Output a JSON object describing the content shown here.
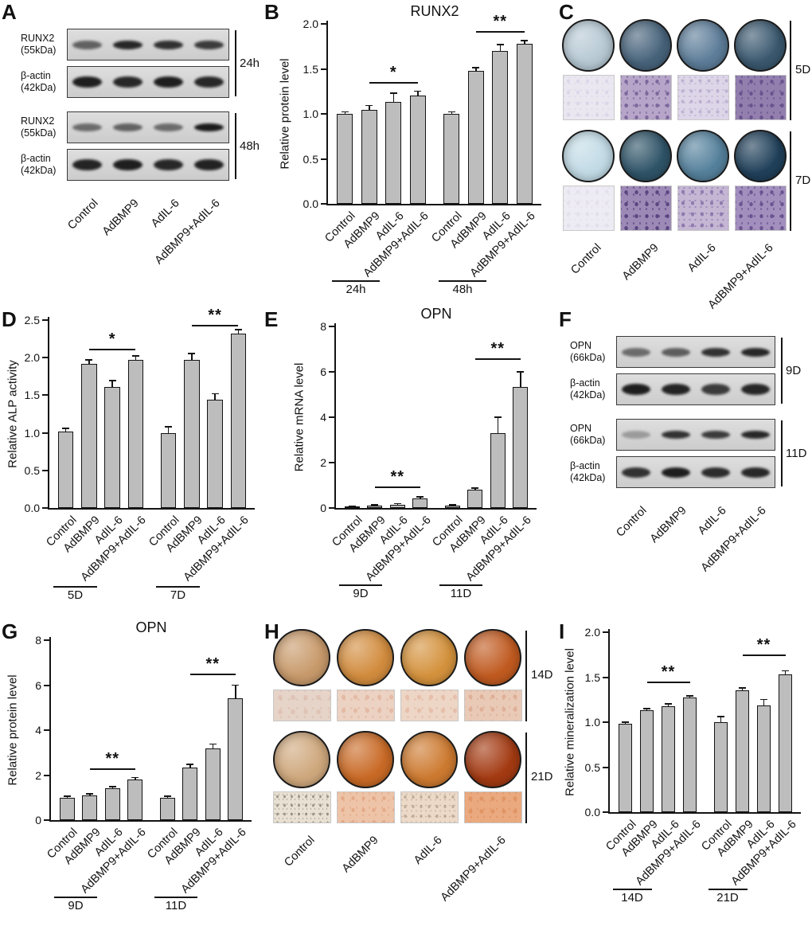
{
  "figure": {
    "panel_letters": [
      "A",
      "B",
      "C",
      "D",
      "E",
      "F",
      "G",
      "H",
      "I"
    ],
    "lane_labels": [
      "Control",
      "AdBMP9",
      "AdIL-6",
      "AdBMP9+AdIL-6"
    ]
  },
  "charts": {
    "B": {
      "type": "bar",
      "title": "RUNX2",
      "ylabel": "Relative protein level",
      "ylim": [
        0,
        2.0
      ],
      "yticks": [
        "0.0",
        "0.5",
        "1.0",
        "1.5",
        "2.0"
      ],
      "categories": [
        "Control",
        "AdBMP9",
        "AdIL-6",
        "AdBMP9+AdIL-6",
        "Control",
        "AdBMP9",
        "AdIL-6",
        "AdBMP9+AdIL-6"
      ],
      "values": [
        1.0,
        1.04,
        1.13,
        1.2,
        1.0,
        1.48,
        1.7,
        1.78
      ],
      "errors": [
        0.02,
        0.05,
        0.1,
        0.05,
        0.02,
        0.03,
        0.07,
        0.03
      ],
      "groups": [
        {
          "label": "24h",
          "from": 0,
          "to": 3
        },
        {
          "label": "48h",
          "from": 4,
          "to": 7
        }
      ],
      "sig": [
        {
          "label": "*",
          "from": 1,
          "to": 3,
          "y": 1.35
        },
        {
          "label": "**",
          "from": 5,
          "to": 7,
          "y": 1.92
        }
      ]
    },
    "D": {
      "type": "bar",
      "title": "",
      "ylabel": "Relative ALP activity",
      "ylim": [
        0,
        2.5
      ],
      "yticks": [
        "0.0",
        "0.5",
        "1.0",
        "1.5",
        "2.0",
        "2.5"
      ],
      "categories": [
        "Control",
        "AdBMP9",
        "AdIL-6",
        "AdBMP9+AdIL-6",
        "Control",
        "AdBMP9",
        "AdIL-6",
        "AdBMP9+AdIL-6"
      ],
      "values": [
        1.02,
        1.92,
        1.61,
        1.97,
        1.0,
        1.97,
        1.44,
        2.32
      ],
      "errors": [
        0.04,
        0.05,
        0.08,
        0.05,
        0.08,
        0.08,
        0.08,
        0.05
      ],
      "groups": [
        {
          "label": "5D",
          "from": 0,
          "to": 3
        },
        {
          "label": "7D",
          "from": 4,
          "to": 7
        }
      ],
      "sig": [
        {
          "label": "*",
          "from": 1,
          "to": 3,
          "y": 2.12
        },
        {
          "label": "**",
          "from": 5,
          "to": 7,
          "y": 2.44
        }
      ]
    },
    "E": {
      "type": "bar",
      "title": "OPN",
      "ylabel": "Relative mRNA level",
      "ylim": [
        0,
        8
      ],
      "yticks": [
        "0",
        "2",
        "4",
        "6",
        "8"
      ],
      "categories": [
        "Control",
        "AdBMP9",
        "AdIL-6",
        "AdBMP9+AdIL-6",
        "Control",
        "AdBMP9",
        "AdIL-6",
        "AdBMP9+AdIL-6"
      ],
      "values": [
        0.06,
        0.1,
        0.14,
        0.42,
        0.1,
        0.82,
        3.3,
        5.35
      ],
      "errors": [
        0.02,
        0.03,
        0.04,
        0.06,
        0.03,
        0.06,
        0.7,
        0.65
      ],
      "groups": [
        {
          "label": "9D",
          "from": 0,
          "to": 3
        },
        {
          "label": "11D",
          "from": 4,
          "to": 7
        }
      ],
      "sig": [
        {
          "label": "**",
          "from": 1,
          "to": 3,
          "y": 0.95
        },
        {
          "label": "**",
          "from": 5,
          "to": 7,
          "y": 6.6
        }
      ]
    },
    "G": {
      "type": "bar",
      "title": "OPN",
      "ylabel": "Relative protein level",
      "ylim": [
        0,
        8
      ],
      "yticks": [
        "0",
        "2",
        "4",
        "6",
        "8"
      ],
      "categories": [
        "Control",
        "AdBMP9",
        "AdIL-6",
        "AdBMP9+AdIL-6",
        "Control",
        "AdBMP9",
        "AdIL-6",
        "AdBMP9+AdIL-6"
      ],
      "values": [
        1.0,
        1.1,
        1.42,
        1.8,
        1.0,
        2.35,
        3.2,
        5.4
      ],
      "errors": [
        0.05,
        0.06,
        0.06,
        0.08,
        0.05,
        0.12,
        0.18,
        0.6
      ],
      "groups": [
        {
          "label": "9D",
          "from": 0,
          "to": 3
        },
        {
          "label": "11D",
          "from": 4,
          "to": 7
        }
      ],
      "sig": [
        {
          "label": "**",
          "from": 1,
          "to": 3,
          "y": 2.3
        },
        {
          "label": "**",
          "from": 5,
          "to": 7,
          "y": 6.5
        }
      ]
    },
    "I": {
      "type": "bar",
      "title": "",
      "ylabel": "Relative mineralization level",
      "ylim": [
        0,
        2.0
      ],
      "yticks": [
        "0.0",
        "0.5",
        "1.0",
        "1.5",
        "2.0"
      ],
      "categories": [
        "Control",
        "AdBMP9",
        "AdIL-6",
        "AdBMP9+AdIL-6",
        "Control",
        "AdBMP9",
        "AdIL-6",
        "AdBMP9+AdIL-6"
      ],
      "values": [
        0.98,
        1.13,
        1.18,
        1.27,
        1.0,
        1.35,
        1.19,
        1.53
      ],
      "errors": [
        0.02,
        0.02,
        0.02,
        0.02,
        0.06,
        0.03,
        0.06,
        0.04
      ],
      "groups": [
        {
          "label": "14D",
          "from": 0,
          "to": 3
        },
        {
          "label": "21D",
          "from": 4,
          "to": 7
        }
      ],
      "sig": [
        {
          "label": "**",
          "from": 1,
          "to": 3,
          "y": 1.45
        },
        {
          "label": "**",
          "from": 5,
          "to": 7,
          "y": 1.75
        }
      ]
    }
  },
  "blots": {
    "A": {
      "groups": [
        {
          "side": "24h",
          "strips": [
            {
              "label1": "RUNX2",
              "label2": "(55kDa)",
              "bandH": 11,
              "bands": [
                0.6,
                0.9,
                0.85,
                0.8
              ]
            },
            {
              "label1": "β-actin",
              "label2": "(42kDa)",
              "bandH": 14,
              "bands": [
                0.95,
                0.9,
                0.95,
                0.9
              ]
            }
          ]
        },
        {
          "side": "48h",
          "strips": [
            {
              "label1": "RUNX2",
              "label2": "(55kDa)",
              "bandH": 10,
              "bands": [
                0.55,
                0.6,
                0.55,
                0.97
              ]
            },
            {
              "label1": "β-actin",
              "label2": "(42kDa)",
              "bandH": 14,
              "bands": [
                0.92,
                0.95,
                0.9,
                0.93
              ]
            }
          ]
        }
      ]
    },
    "F": {
      "groups": [
        {
          "side": "9D",
          "strips": [
            {
              "label1": "OPN",
              "label2": "(66kDa)",
              "bandH": 11,
              "bands": [
                0.55,
                0.62,
                0.85,
                0.9
              ]
            },
            {
              "label1": "β-actin",
              "label2": "(42kDa)",
              "bandH": 14,
              "bands": [
                0.95,
                0.92,
                0.8,
                0.9
              ]
            }
          ]
        },
        {
          "side": "11D",
          "strips": [
            {
              "label1": "OPN",
              "label2": "(66kDa)",
              "bandH": 10,
              "bands": [
                0.3,
                0.85,
                0.8,
                0.9
              ]
            },
            {
              "label1": "β-actin",
              "label2": "(42kDa)",
              "bandH": 13,
              "bands": [
                0.85,
                0.95,
                0.88,
                0.9
              ]
            }
          ]
        }
      ]
    }
  },
  "stains": {
    "C": {
      "groups": [
        {
          "label": "5D",
          "wells": [
            "#b7c9d4",
            "#47637b",
            "#5d7d99",
            "#3a586f"
          ],
          "micro": [
            {
              "base": "#eae7f1",
              "dot": "#c9c0da",
              "dop": 0.4,
              "sz": 12
            },
            {
              "base": "#b6a5c8",
              "dot": "#6b5590",
              "dop": 0.75,
              "sz": 13
            },
            {
              "base": "#ddd6e8",
              "dot": "#9f8fbd",
              "dop": 0.5,
              "sz": 11
            },
            {
              "base": "#937fae",
              "dot": "#5d4a85",
              "dop": 0.8,
              "sz": 13
            }
          ]
        },
        {
          "label": "7D",
          "wells": [
            "#c2dbe6",
            "#2f5468",
            "#55819c",
            "#20405a"
          ],
          "micro": [
            {
              "base": "#edebf3",
              "dot": "#d3cce1",
              "dop": 0.35,
              "sz": 12
            },
            {
              "base": "#9d89b6",
              "dot": "#4f3c78",
              "dop": 0.85,
              "sz": 13
            },
            {
              "base": "#c5b6d4",
              "dot": "#7a64a0",
              "dop": 0.7,
              "sz": 12
            },
            {
              "base": "#a38fbd",
              "dot": "#5b4586",
              "dop": 0.8,
              "sz": 13
            }
          ]
        }
      ]
    },
    "H": {
      "groups": [
        {
          "label": "14D",
          "wells": [
            "#c89a6b",
            "#d28c3e",
            "#d4923d",
            "#c05a20"
          ],
          "micro": [
            {
              "base": "#e6d4c9",
              "dot": "#d8b2a2",
              "dop": 0.5,
              "sz": 16
            },
            {
              "base": "#ecd2c2",
              "dot": "#dfa78f",
              "dop": 0.55,
              "sz": 15
            },
            {
              "base": "#edd6c6",
              "dot": "#e1ac96",
              "dop": 0.55,
              "sz": 15
            },
            {
              "base": "#e9cab7",
              "dot": "#d99f83",
              "dop": 0.6,
              "sz": 14
            }
          ]
        },
        {
          "label": "21D",
          "wells": [
            "#cfa87d",
            "#c96a26",
            "#cd7a30",
            "#a33a12"
          ],
          "micro": [
            {
              "base": "#e8e0d2",
              "dot": "#55503f",
              "dop": 0.5,
              "sz": 9
            },
            {
              "base": "#eec4a8",
              "dot": "#dd9a74",
              "dop": 0.6,
              "sz": 13
            },
            {
              "base": "#ecd9c8",
              "dot": "#8a7a62",
              "dop": 0.45,
              "sz": 10
            },
            {
              "base": "#eaa97f",
              "dot": "#dc8a57",
              "dop": 0.65,
              "sz": 14
            }
          ]
        }
      ]
    }
  }
}
